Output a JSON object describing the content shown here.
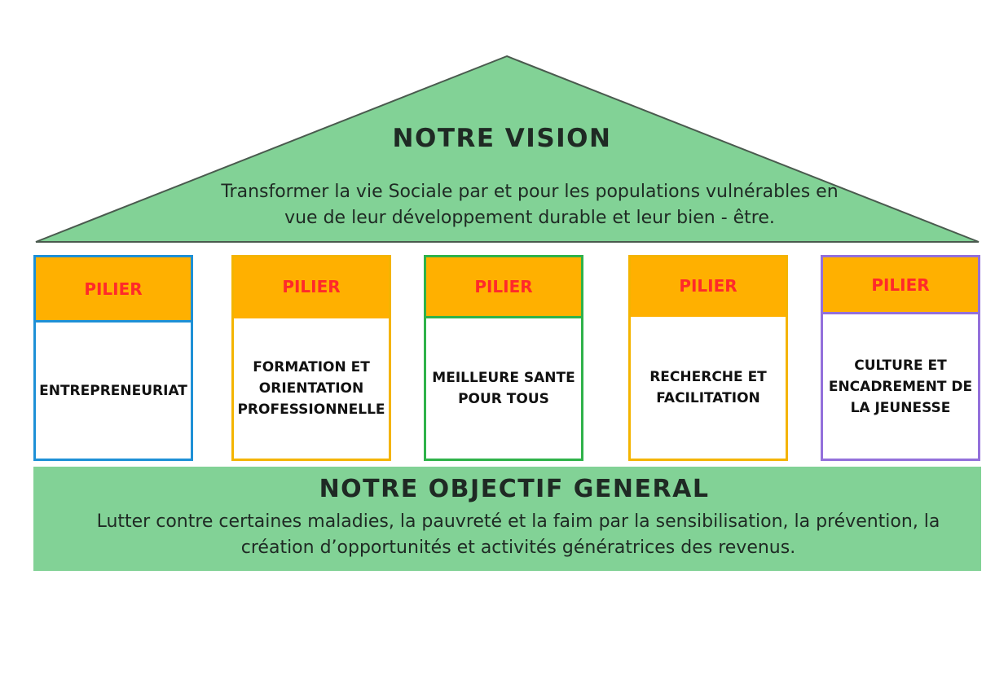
{
  "vision": {
    "title": "NOTRE VISION",
    "text": "Transformer la vie Sociale par et pour les populations vulnérables en vue de leur développement durable et leur bien - être."
  },
  "pillars": [
    {
      "header": "PILIER",
      "label": "ENTREPRENEURIAT"
    },
    {
      "header": "PILIER",
      "label": "FORMATION ET\nORIENTATION\nPROFESSIONNELLE"
    },
    {
      "header": "PILIER",
      "label": "MEILLEURE SANTE\nPOUR TOUS"
    },
    {
      "header": "PILIER",
      "label": "RECHERCHE ET\nFACILITATION"
    },
    {
      "header": "PILIER",
      "label": "CULTURE ET\nENCADREMENT DE\nLA JEUNESSE"
    }
  ],
  "goal": {
    "title": "NOTRE OBJECTIF GENERAL",
    "text": "Lutter contre certaines maladies, la pauvreté et la faim par la sensibilisation, la prévention, la création d’opportunités et activités génératrices des revenus."
  },
  "colors": {
    "green": "#82d296",
    "orange": "#ffb000",
    "pillar_text_red": "#ff2a2a"
  }
}
